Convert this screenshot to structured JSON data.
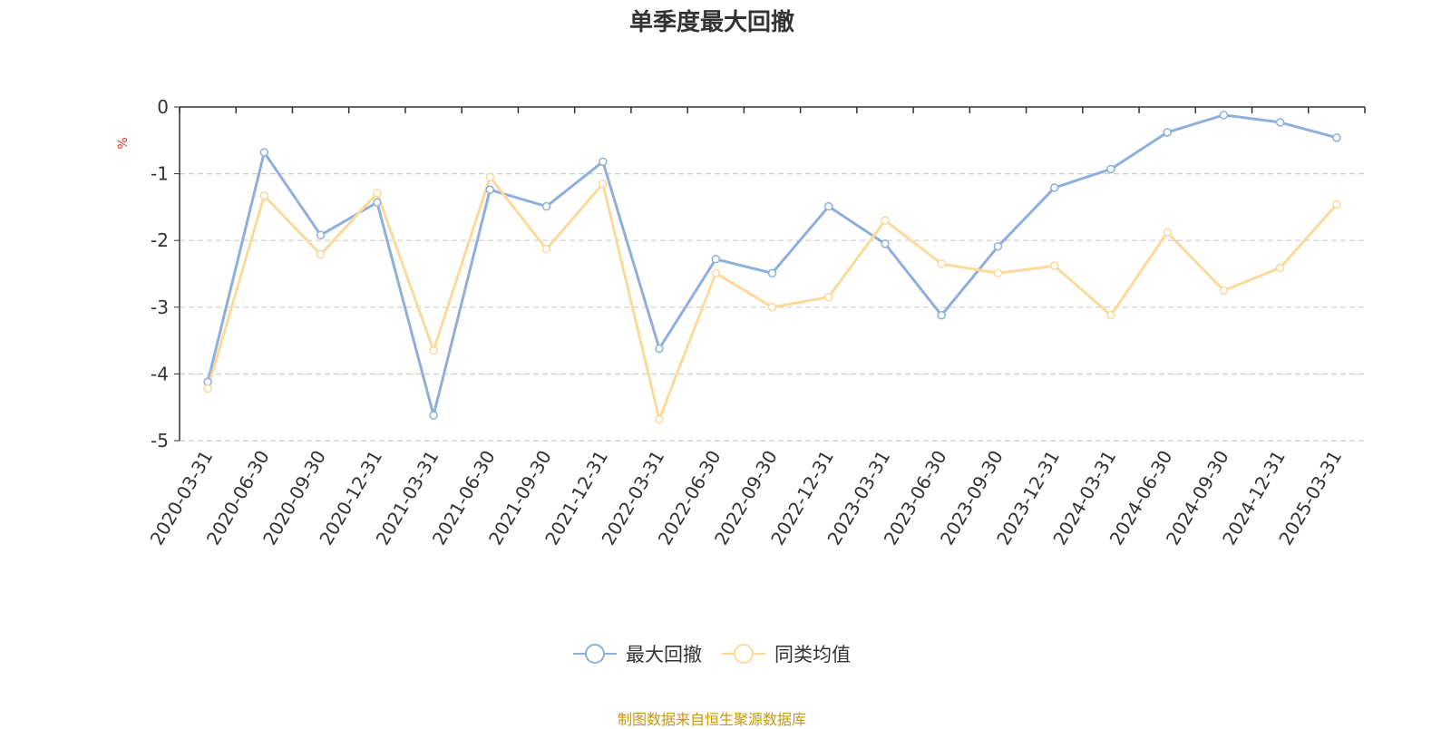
{
  "chart_data": {
    "type": "line",
    "title": "单季度最大回撤",
    "ylabel": "%",
    "ylim": [
      -5,
      0
    ],
    "yticks": [
      "0",
      "-1",
      "-2",
      "-3",
      "-4",
      "-5"
    ],
    "ytick_values": [
      0,
      -1,
      -2,
      -3,
      -4,
      -5
    ],
    "grid": true,
    "legend_position": "bottom",
    "categories": [
      "2020-03-31",
      "2020-06-30",
      "2020-09-30",
      "2020-12-31",
      "2021-03-31",
      "2021-06-30",
      "2021-09-30",
      "2021-12-31",
      "2022-03-31",
      "2022-06-30",
      "2022-09-30",
      "2022-12-31",
      "2023-03-31",
      "2023-06-30",
      "2023-09-30",
      "2023-12-31",
      "2024-03-31",
      "2024-06-30",
      "2024-09-30",
      "2024-12-31",
      "2025-03-31"
    ],
    "series": [
      {
        "name": "最大回撤",
        "color": "#8eaedb",
        "values": [
          -4.12,
          -0.68,
          -1.92,
          -1.43,
          -4.62,
          -1.24,
          -1.49,
          -0.82,
          -3.62,
          -2.28,
          -2.49,
          -1.49,
          -2.05,
          -3.12,
          -2.09,
          -1.21,
          -0.93,
          -0.38,
          -0.12,
          -0.23,
          -0.46
        ]
      },
      {
        "name": "同类均值",
        "color": "#fbd99b",
        "values": [
          -4.22,
          -1.33,
          -2.21,
          -1.29,
          -3.65,
          -1.05,
          -2.13,
          -1.15,
          -4.68,
          -2.49,
          -3.0,
          -2.85,
          -1.7,
          -2.35,
          -2.49,
          -2.38,
          -3.12,
          -1.88,
          -2.75,
          -2.41,
          -1.46
        ]
      }
    ]
  },
  "source_note": "制图数据来自恒生聚源数据库"
}
